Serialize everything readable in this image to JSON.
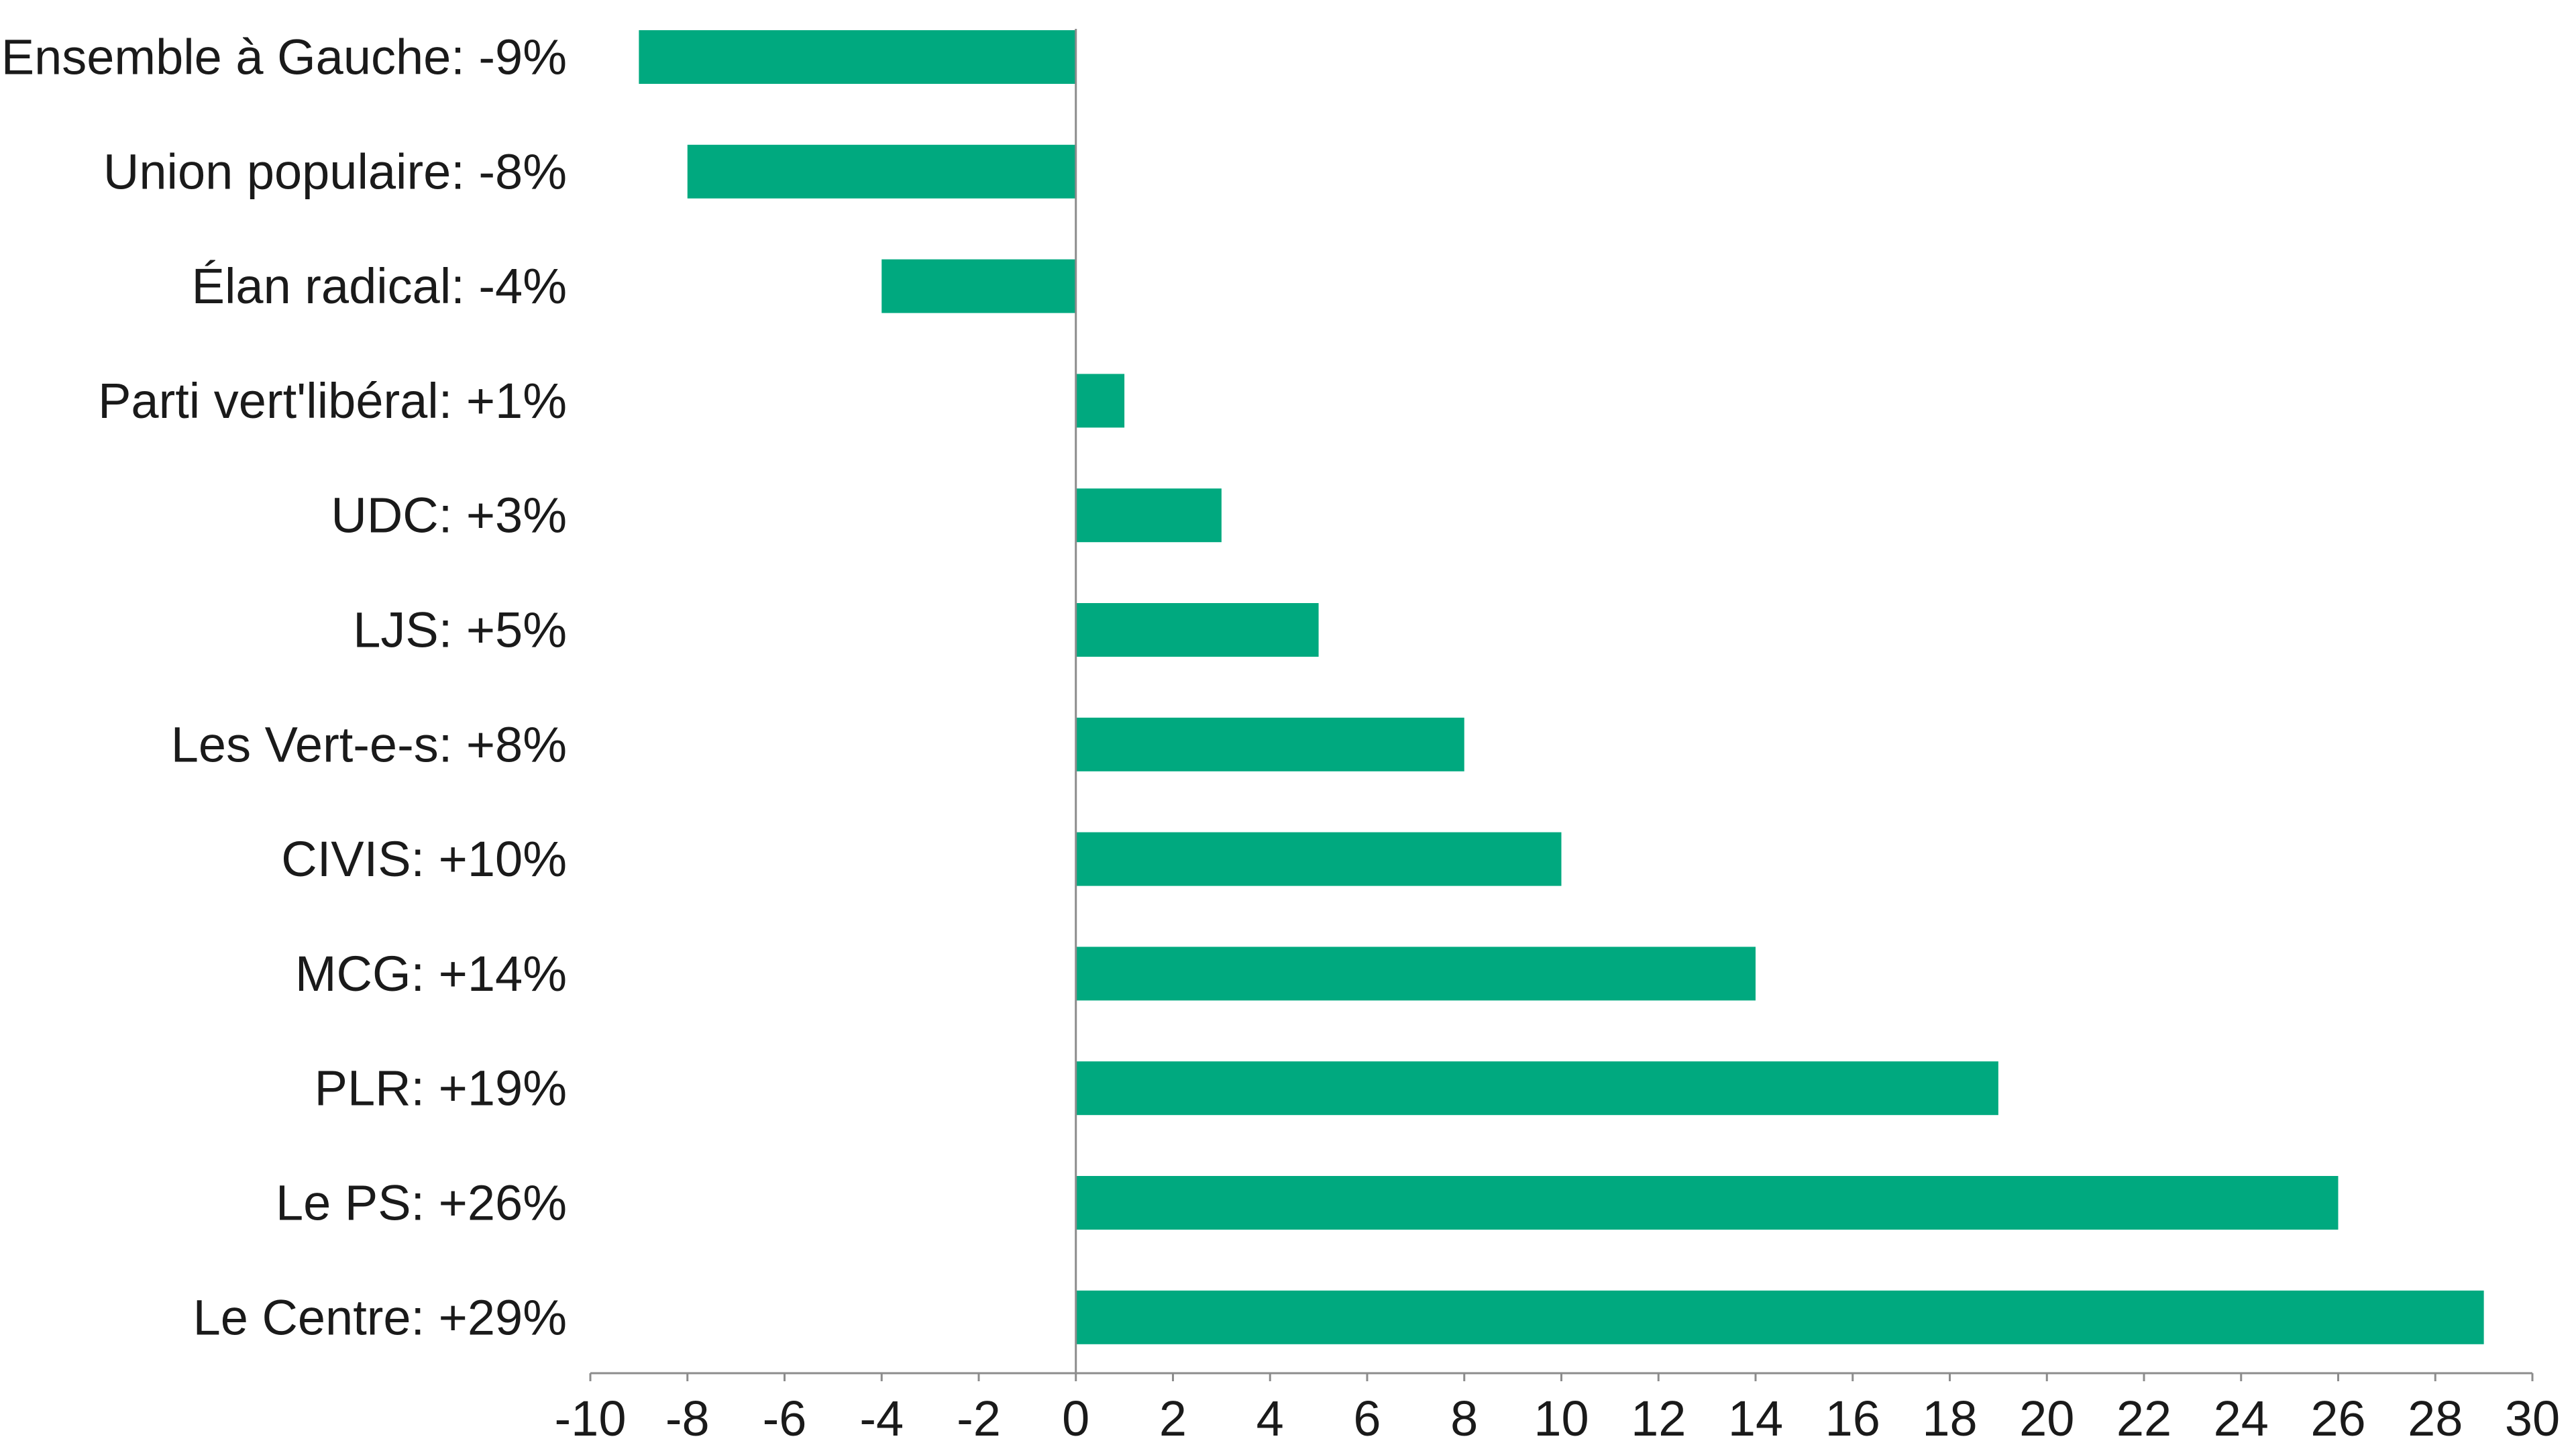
{
  "colors": {
    "bar": "#00a97f",
    "axis": "#8c8c8c",
    "text": "#1a1a1a",
    "background": "#ffffff"
  },
  "chart_data": {
    "type": "bar",
    "orientation": "horizontal",
    "categories": [
      "Ensemble à Gauche: -9%",
      "Union populaire: -8%",
      "Élan radical: -4%",
      "Parti vert'libéral: +1%",
      "UDC: +3%",
      "LJS: +5%",
      "Les Vert-e-s: +8%",
      "CIVIS: +10%",
      "MCG: +14%",
      "PLR: +19%",
      "Le PS: +26%",
      "Le Centre: +29%"
    ],
    "values": [
      -9,
      -8,
      -4,
      1,
      3,
      5,
      8,
      10,
      14,
      19,
      26,
      29
    ],
    "xlim": [
      -10,
      30
    ],
    "xticks": [
      -10,
      -8,
      -6,
      -4,
      -2,
      0,
      2,
      4,
      6,
      8,
      10,
      12,
      14,
      16,
      18,
      20,
      22,
      24,
      26,
      28,
      30
    ],
    "title": "",
    "xlabel": "",
    "ylabel": "",
    "grid": false,
    "legend": "none"
  }
}
